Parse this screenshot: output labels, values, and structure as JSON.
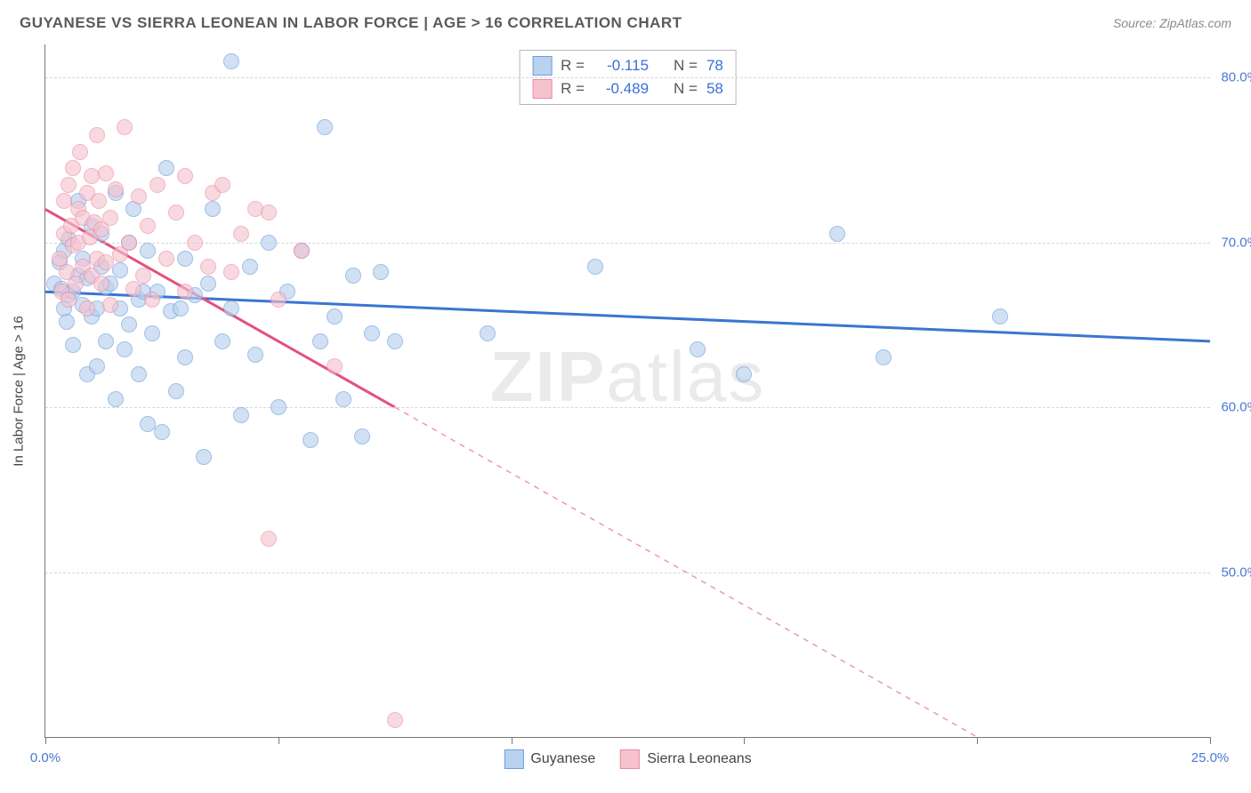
{
  "title": "GUYANESE VS SIERRA LEONEAN IN LABOR FORCE | AGE > 16 CORRELATION CHART",
  "source": "Source: ZipAtlas.com",
  "ylabel": "In Labor Force | Age > 16",
  "watermark_a": "ZIP",
  "watermark_b": "atlas",
  "chart": {
    "xlim": [
      0,
      25
    ],
    "ylim": [
      40,
      82
    ],
    "xtick_vals": [
      0,
      5,
      10,
      15,
      20,
      25
    ],
    "xtick_labels": [
      "0.0%",
      "",
      "",
      "",
      "",
      "25.0%"
    ],
    "ytick_vals": [
      50,
      60,
      70,
      80
    ],
    "ytick_labels": [
      "50.0%",
      "60.0%",
      "70.0%",
      "80.0%"
    ],
    "grid_color": "#d6d6d6",
    "axis_color": "#777777",
    "point_radius": 9,
    "point_border_width": 1.5,
    "watermark_opacity": 0.08
  },
  "series": [
    {
      "key": "guyanese",
      "label": "Guyanese",
      "fill": "#b9d2ee",
      "stroke": "#6d9edf",
      "fill_opacity": 0.65,
      "line_color": "#3b75d1",
      "line_width": 3,
      "reg_start": [
        0,
        67.0
      ],
      "reg_end_solid": [
        25,
        64.0
      ],
      "reg_dashed_from": null,
      "R": "-0.115",
      "N": "78",
      "points": [
        [
          0.2,
          67.5
        ],
        [
          0.3,
          68.8
        ],
        [
          0.35,
          67.2
        ],
        [
          0.4,
          66.0
        ],
        [
          0.4,
          69.5
        ],
        [
          0.45,
          65.2
        ],
        [
          0.5,
          70.2
        ],
        [
          0.5,
          66.8
        ],
        [
          0.6,
          67.0
        ],
        [
          0.6,
          63.8
        ],
        [
          0.7,
          68.0
        ],
        [
          0.7,
          72.5
        ],
        [
          0.8,
          66.2
        ],
        [
          0.8,
          69.0
        ],
        [
          0.9,
          62.0
        ],
        [
          0.9,
          67.8
        ],
        [
          1.0,
          65.5
        ],
        [
          1.0,
          71.0
        ],
        [
          1.1,
          62.5
        ],
        [
          1.1,
          66.0
        ],
        [
          1.2,
          68.5
        ],
        [
          1.2,
          70.5
        ],
        [
          1.3,
          64.0
        ],
        [
          1.3,
          67.3
        ],
        [
          1.4,
          67.5
        ],
        [
          1.5,
          73.0
        ],
        [
          1.5,
          60.5
        ],
        [
          1.6,
          66.0
        ],
        [
          1.6,
          68.3
        ],
        [
          1.7,
          63.5
        ],
        [
          1.8,
          70.0
        ],
        [
          1.8,
          65.0
        ],
        [
          1.9,
          72.0
        ],
        [
          2.0,
          66.5
        ],
        [
          2.0,
          62.0
        ],
        [
          2.1,
          67.0
        ],
        [
          2.2,
          59.0
        ],
        [
          2.2,
          69.5
        ],
        [
          2.3,
          64.5
        ],
        [
          2.4,
          67.0
        ],
        [
          2.5,
          58.5
        ],
        [
          2.6,
          74.5
        ],
        [
          2.7,
          65.8
        ],
        [
          2.8,
          61.0
        ],
        [
          2.9,
          66.0
        ],
        [
          3.0,
          63.0
        ],
        [
          3.0,
          69.0
        ],
        [
          3.2,
          66.8
        ],
        [
          3.4,
          57.0
        ],
        [
          3.5,
          67.5
        ],
        [
          3.6,
          72.0
        ],
        [
          3.8,
          64.0
        ],
        [
          4.0,
          81.0
        ],
        [
          4.0,
          66.0
        ],
        [
          4.2,
          59.5
        ],
        [
          4.4,
          68.5
        ],
        [
          4.5,
          63.2
        ],
        [
          4.8,
          70.0
        ],
        [
          5.0,
          60.0
        ],
        [
          5.2,
          67.0
        ],
        [
          5.5,
          69.5
        ],
        [
          5.7,
          58.0
        ],
        [
          5.9,
          64.0
        ],
        [
          6.0,
          77.0
        ],
        [
          6.2,
          65.5
        ],
        [
          6.4,
          60.5
        ],
        [
          6.6,
          68.0
        ],
        [
          6.8,
          58.2
        ],
        [
          7.0,
          64.5
        ],
        [
          7.2,
          68.2
        ],
        [
          7.5,
          64.0
        ],
        [
          9.5,
          64.5
        ],
        [
          11.8,
          68.5
        ],
        [
          14.0,
          63.5
        ],
        [
          15.0,
          62.0
        ],
        [
          17.0,
          70.5
        ],
        [
          18.0,
          63.0
        ],
        [
          20.5,
          65.5
        ]
      ]
    },
    {
      "key": "sierra",
      "label": "Sierra Leoneans",
      "fill": "#f6c2ce",
      "stroke": "#e98aa2",
      "fill_opacity": 0.62,
      "line_color": "#e4517c",
      "line_width": 3,
      "reg_start": [
        0,
        72.0
      ],
      "reg_end_solid": [
        7.5,
        60.0
      ],
      "reg_dashed_from": [
        20.0,
        40.0
      ],
      "R": "-0.489",
      "N": "58",
      "points": [
        [
          0.3,
          69.0
        ],
        [
          0.35,
          67.0
        ],
        [
          0.4,
          70.5
        ],
        [
          0.4,
          72.5
        ],
        [
          0.45,
          68.2
        ],
        [
          0.5,
          73.5
        ],
        [
          0.5,
          66.5
        ],
        [
          0.55,
          71.0
        ],
        [
          0.6,
          69.8
        ],
        [
          0.6,
          74.5
        ],
        [
          0.65,
          67.5
        ],
        [
          0.7,
          72.0
        ],
        [
          0.7,
          70.0
        ],
        [
          0.75,
          75.5
        ],
        [
          0.8,
          68.5
        ],
        [
          0.8,
          71.5
        ],
        [
          0.9,
          73.0
        ],
        [
          0.9,
          66.0
        ],
        [
          0.95,
          70.3
        ],
        [
          1.0,
          74.0
        ],
        [
          1.0,
          68.0
        ],
        [
          1.05,
          71.2
        ],
        [
          1.1,
          76.5
        ],
        [
          1.1,
          69.0
        ],
        [
          1.15,
          72.5
        ],
        [
          1.2,
          67.5
        ],
        [
          1.2,
          70.8
        ],
        [
          1.3,
          74.2
        ],
        [
          1.3,
          68.8
        ],
        [
          1.4,
          71.5
        ],
        [
          1.4,
          66.2
        ],
        [
          1.5,
          73.2
        ],
        [
          1.6,
          69.3
        ],
        [
          1.7,
          77.0
        ],
        [
          1.8,
          70.0
        ],
        [
          1.9,
          67.2
        ],
        [
          2.0,
          72.8
        ],
        [
          2.1,
          68.0
        ],
        [
          2.2,
          71.0
        ],
        [
          2.3,
          66.5
        ],
        [
          2.4,
          73.5
        ],
        [
          2.6,
          69.0
        ],
        [
          2.8,
          71.8
        ],
        [
          3.0,
          74.0
        ],
        [
          3.0,
          67.0
        ],
        [
          3.2,
          70.0
        ],
        [
          3.5,
          68.5
        ],
        [
          3.6,
          73.0
        ],
        [
          3.8,
          73.5
        ],
        [
          4.0,
          68.2
        ],
        [
          4.2,
          70.5
        ],
        [
          4.5,
          72.0
        ],
        [
          4.8,
          71.8
        ],
        [
          5.0,
          66.5
        ],
        [
          5.5,
          69.5
        ],
        [
          6.2,
          62.5
        ],
        [
          4.8,
          52.0
        ],
        [
          7.5,
          41.0
        ]
      ]
    }
  ],
  "legend_top": {
    "r_label": "R =",
    "n_label": "N ="
  },
  "legend_bottom": [
    {
      "series": 0
    },
    {
      "series": 1
    }
  ]
}
